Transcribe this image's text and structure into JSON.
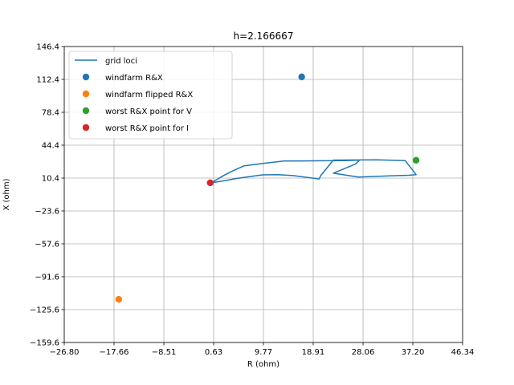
{
  "chart_data": {
    "type": "scatter",
    "title": "h=2.166667",
    "xlabel": "R (ohm)",
    "ylabel": "X (ohm)",
    "xlim": [
      -26.8,
      46.34
    ],
    "ylim": [
      -159.6,
      146.4
    ],
    "xticks": [
      "−26.80",
      "−17.66",
      "−8.51",
      "0.63",
      "9.77",
      "18.91",
      "28.06",
      "37.20",
      "46.34"
    ],
    "yticks": [
      "−159.6",
      "−125.6",
      "−91.6",
      "−57.6",
      "−23.6",
      "10.4",
      "44.4",
      "78.4",
      "112.4",
      "146.4"
    ],
    "grid": true,
    "legend_position": "upper-left",
    "series": [
      {
        "name": "grid loci",
        "kind": "line",
        "color": "#1f77b4",
        "x": [
          0.2,
          2.6,
          4.1,
          6.2,
          9.7,
          13.5,
          21.0,
          24.7,
          27.4,
          26.7,
          22.6,
          27.2,
          32.9,
          36.5,
          37.8,
          35.8,
          30.5,
          22.6,
          20.3,
          20.0,
          15.2,
          12.4,
          9.6,
          4.8,
          3.0,
          0.2
        ],
        "y": [
          5.5,
          13.5,
          17.7,
          23.0,
          25.5,
          28.0,
          28.3,
          28.5,
          28.8,
          25.0,
          15.5,
          11.5,
          12.7,
          13.3,
          14.0,
          28.5,
          29.3,
          29.0,
          13.0,
          9.5,
          13.0,
          14.0,
          13.7,
          10.0,
          8.0,
          5.5
        ]
      },
      {
        "name": "windfarm R&X",
        "kind": "scatter",
        "color": "#1f77b4",
        "x": [
          16.8
        ],
        "y": [
          115.0
        ]
      },
      {
        "name": "windfarm flipped R&X",
        "kind": "scatter",
        "color": "#ff7f0e",
        "x": [
          -16.8
        ],
        "y": [
          -115.0
        ]
      },
      {
        "name": "worst R&X point for V",
        "kind": "scatter",
        "color": "#2ca02c",
        "x": [
          37.8
        ],
        "y": [
          28.8
        ]
      },
      {
        "name": "worst R&X point for I",
        "kind": "scatter",
        "color": "#d62728",
        "x": [
          0.0
        ],
        "y": [
          5.5
        ]
      }
    ]
  }
}
